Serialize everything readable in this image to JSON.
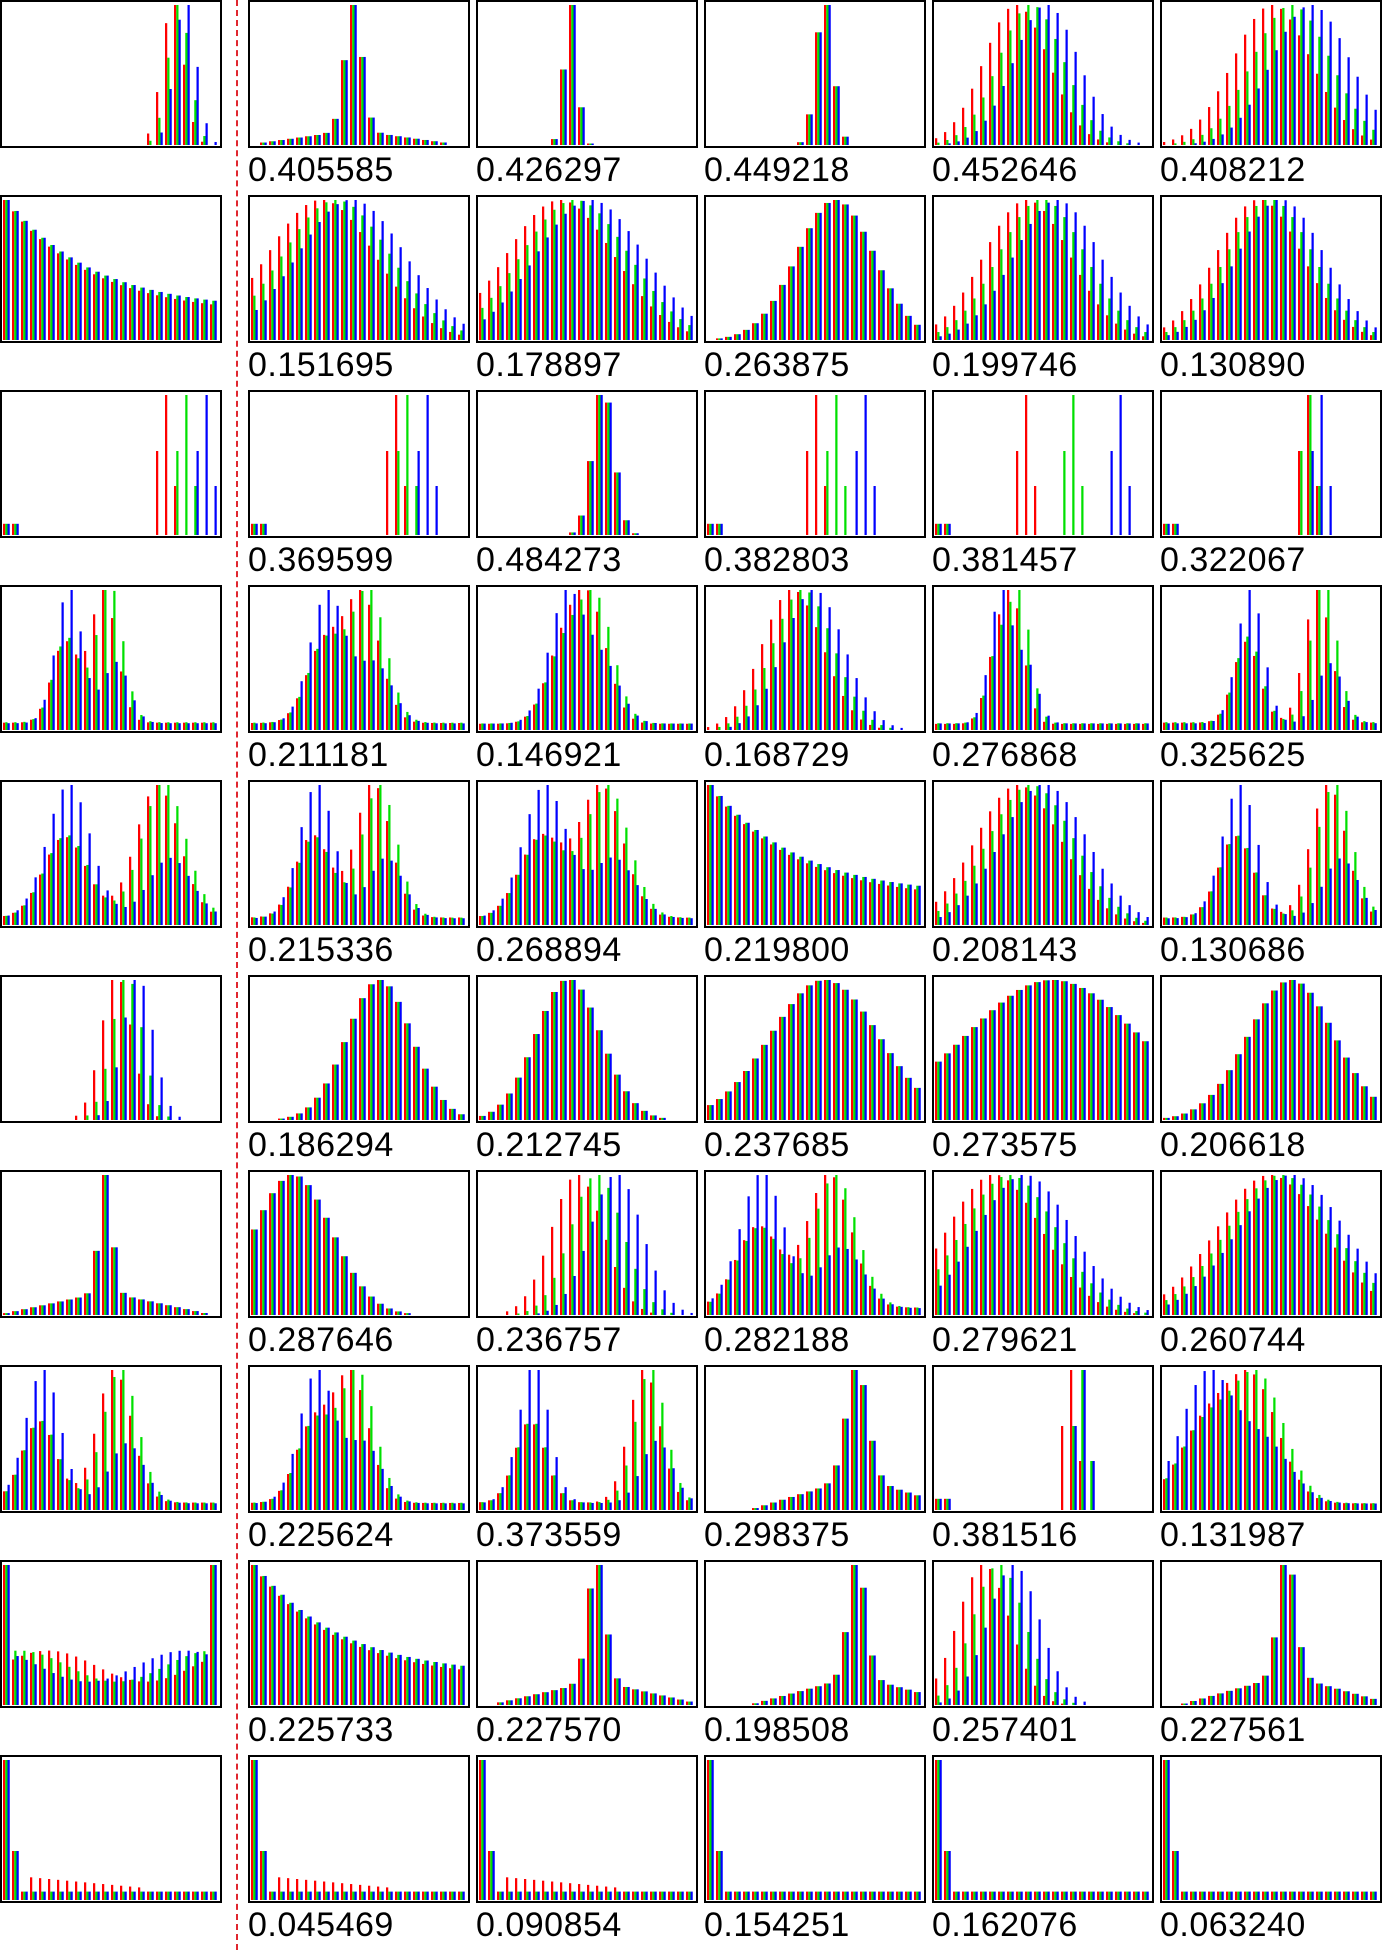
{
  "colors": {
    "red": "#ff0000",
    "green": "#00e000",
    "blue": "#0000ff",
    "frame": "#000000",
    "divider": "#e0262e"
  },
  "chart_data": {
    "type": "grid-of-rgb-histograms",
    "rows": [
      {
        "query": {
          "type": "peak",
          "c": 0.82,
          "w": 0.05,
          "sep": 0.02
        },
        "results": [
          {
            "score": "0.405585",
            "profile": {
              "type": "peak",
              "c": 0.48,
              "w": 0.04,
              "tail": 0.12
            }
          },
          {
            "score": "0.426297",
            "profile": {
              "type": "peak",
              "c": 0.43,
              "w": 0.03
            }
          },
          {
            "score": "0.449218",
            "profile": {
              "type": "peak",
              "c": 0.55,
              "w": 0.04
            }
          },
          {
            "score": "0.452646",
            "profile": {
              "type": "bell",
              "c": 0.45,
              "w": 0.15,
              "sep": 0.06
            }
          },
          {
            "score": "0.408212",
            "profile": {
              "type": "bell",
              "c": 0.6,
              "w": 0.18,
              "sep": 0.08
            }
          }
        ]
      },
      {
        "query": {
          "type": "decay",
          "sep": 0.05
        },
        "results": [
          {
            "score": "0.151695",
            "profile": {
              "type": "bell",
              "c": 0.4,
              "w": 0.25,
              "sep": 0.06
            }
          },
          {
            "score": "0.178897",
            "profile": {
              "type": "bell",
              "c": 0.45,
              "w": 0.25,
              "sep": 0.06
            }
          },
          {
            "score": "0.263875",
            "profile": {
              "type": "bell",
              "c": 0.6,
              "w": 0.18
            }
          },
          {
            "score": "0.199746",
            "profile": {
              "type": "bell",
              "c": 0.5,
              "w": 0.2,
              "sep": 0.06
            }
          },
          {
            "score": "0.130890",
            "profile": {
              "type": "bell",
              "c": 0.5,
              "w": 0.2,
              "sep": 0.04
            }
          }
        ]
      },
      {
        "query": {
          "type": "spikes",
          "c": 0.85,
          "sep": 0.08
        },
        "results": [
          {
            "score": "0.369599",
            "profile": {
              "type": "spikes",
              "c": 0.72,
              "sep": 0.06
            }
          },
          {
            "score": "0.484273",
            "profile": {
              "type": "peak",
              "c": 0.58,
              "w": 0.05
            }
          },
          {
            "score": "0.382803",
            "profile": {
              "type": "spikes",
              "c": 0.6,
              "sep": 0.12
            }
          },
          {
            "score": "0.381457",
            "profile": {
              "type": "spikes",
              "c": 0.62,
              "sep": 0.2
            }
          },
          {
            "score": "0.322067",
            "profile": {
              "type": "spikes",
              "c": 0.68,
              "sep": 0.01
            }
          }
        ]
      },
      {
        "query": {
          "type": "bimodal",
          "c1": 0.3,
          "c2": 0.5,
          "w": 0.06
        },
        "results": [
          {
            "score": "0.211181",
            "profile": {
              "type": "bimodal",
              "c1": 0.35,
              "c2": 0.55,
              "w": 0.08
            }
          },
          {
            "score": "0.146921",
            "profile": {
              "type": "bimodal",
              "c1": 0.4,
              "c2": 0.55,
              "w": 0.08
            }
          },
          {
            "score": "0.168729",
            "profile": {
              "type": "bell",
              "c": 0.45,
              "w": 0.14,
              "sep": 0.04
            }
          },
          {
            "score": "0.276868",
            "profile": {
              "type": "bimodal",
              "c1": 0.3,
              "c2": 0.4,
              "w": 0.05
            }
          },
          {
            "score": "0.325625",
            "profile": {
              "type": "bimodal",
              "c1": 0.4,
              "c2": 0.75,
              "w": 0.06
            }
          }
        ]
      },
      {
        "query": {
          "type": "bimodal",
          "c1": 0.3,
          "c2": 0.75,
          "w": 0.1
        },
        "results": [
          {
            "score": "0.215336",
            "profile": {
              "type": "bimodal",
              "c1": 0.3,
              "c2": 0.6,
              "w": 0.08
            }
          },
          {
            "score": "0.268894",
            "profile": {
              "type": "bimodal",
              "c1": 0.3,
              "c2": 0.6,
              "w": 0.1
            }
          },
          {
            "score": "0.219800",
            "profile": {
              "type": "decay",
              "sep": 0.03
            }
          },
          {
            "score": "0.208143",
            "profile": {
              "type": "bell",
              "c": 0.45,
              "w": 0.2,
              "sep": 0.05
            }
          },
          {
            "score": "0.130686",
            "profile": {
              "type": "bimodal",
              "c1": 0.35,
              "c2": 0.8,
              "w": 0.08
            }
          }
        ]
      },
      {
        "query": {
          "type": "peak",
          "c": 0.58,
          "w": 0.07,
          "sep": 0.04
        },
        "results": [
          {
            "score": "0.186294",
            "profile": {
              "type": "bell",
              "c": 0.6,
              "w": 0.15
            }
          },
          {
            "score": "0.212745",
            "profile": {
              "type": "bell",
              "c": 0.42,
              "w": 0.15
            }
          },
          {
            "score": "0.237685",
            "profile": {
              "type": "bell",
              "c": 0.55,
              "w": 0.25
            }
          },
          {
            "score": "0.273575",
            "profile": {
              "type": "bell",
              "c": 0.55,
              "w": 0.4
            }
          },
          {
            "score": "0.206618",
            "profile": {
              "type": "bell",
              "c": 0.6,
              "w": 0.2
            }
          }
        ]
      },
      {
        "query": {
          "type": "peak",
          "c": 0.48,
          "w": 0.03,
          "tail": 0.2
        },
        "results": [
          {
            "score": "0.287646",
            "profile": {
              "type": "bell",
              "c": 0.2,
              "w": 0.18
            }
          },
          {
            "score": "0.236757",
            "profile": {
              "type": "bell",
              "c": 0.55,
              "w": 0.12,
              "sep": 0.08
            }
          },
          {
            "score": "0.282188",
            "profile": {
              "type": "bimodal",
              "c1": 0.25,
              "c2": 0.6,
              "w": 0.1
            }
          },
          {
            "score": "0.279621",
            "profile": {
              "type": "bell",
              "c": 0.35,
              "w": 0.22,
              "sep": 0.06
            }
          },
          {
            "score": "0.260744",
            "profile": {
              "type": "bell",
              "c": 0.55,
              "w": 0.25,
              "sep": 0.04
            }
          }
        ]
      },
      {
        "query": {
          "type": "bimodal",
          "c1": 0.18,
          "c2": 0.55,
          "w": 0.08
        },
        "results": [
          {
            "score": "0.225624",
            "profile": {
              "type": "bimodal",
              "c1": 0.3,
              "c2": 0.5,
              "w": 0.08
            }
          },
          {
            "score": "0.373559",
            "profile": {
              "type": "bimodal",
              "c1": 0.25,
              "c2": 0.8,
              "w": 0.07
            }
          },
          {
            "score": "0.298375",
            "profile": {
              "type": "peak",
              "c": 0.7,
              "w": 0.05,
              "tail": 0.3
            }
          },
          {
            "score": "0.381516",
            "profile": {
              "type": "spikes",
              "c": 0.65,
              "sep": 0.03
            }
          },
          {
            "score": "0.131987",
            "profile": {
              "type": "bimodal",
              "c1": 0.2,
              "c2": 0.45,
              "w": 0.12
            }
          }
        ]
      },
      {
        "query": {
          "type": "uniform",
          "spike": 0.02
        },
        "results": [
          {
            "score": "0.225733",
            "profile": {
              "type": "decay",
              "sep": 0.02
            }
          },
          {
            "score": "0.227570",
            "profile": {
              "type": "peak",
              "c": 0.55,
              "w": 0.04,
              "tail": 0.2
            }
          },
          {
            "score": "0.198508",
            "profile": {
              "type": "peak",
              "c": 0.7,
              "w": 0.04,
              "tail": 0.25
            }
          },
          {
            "score": "0.257401",
            "profile": {
              "type": "bell",
              "c": 0.3,
              "w": 0.12,
              "sep": 0.06
            }
          },
          {
            "score": "0.227561",
            "profile": {
              "type": "peak",
              "c": 0.58,
              "w": 0.04,
              "tail": 0.25
            }
          }
        ]
      },
      {
        "query": {
          "type": "spike0",
          "redtail": true
        },
        "results": [
          {
            "score": "0.045469",
            "profile": {
              "type": "spike0",
              "redtail": true
            }
          },
          {
            "score": "0.090854",
            "profile": {
              "type": "spike0",
              "redtail": true
            }
          },
          {
            "score": "0.154251",
            "profile": {
              "type": "spike0",
              "redtail": false
            }
          },
          {
            "score": "0.162076",
            "profile": {
              "type": "spike0",
              "redtail": false
            }
          },
          {
            "score": "0.063240",
            "profile": {
              "type": "spike0",
              "redtail": false
            }
          }
        ]
      }
    ]
  }
}
